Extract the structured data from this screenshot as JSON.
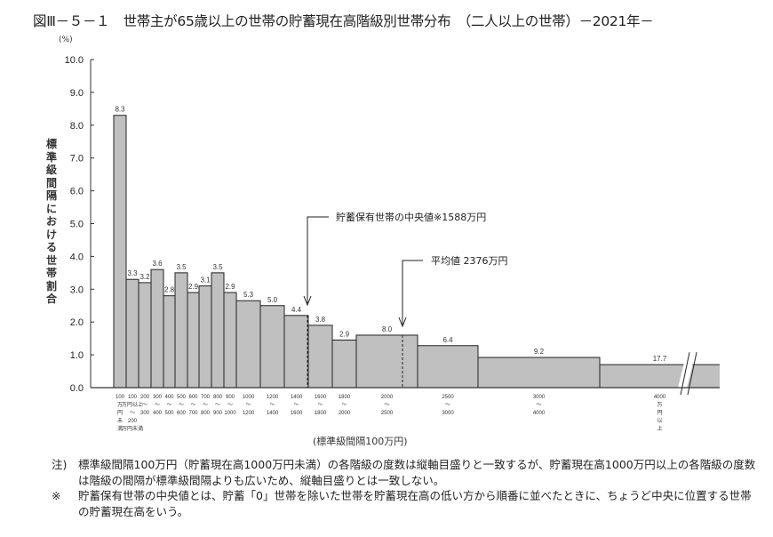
{
  "title": "図Ⅲ－５－１　世帯主が65歳以上の世帯の貯蓄現在高階級別世帯分布　（二人以上の世帯）－2021年－",
  "y_unit": "(%)",
  "y_axis_label": "標準級間隔における世帯割合",
  "x_axis_title": "(標準級間隔100万円)",
  "annotations": {
    "median": "貯蓄保有世帯の中央値※1588万円",
    "mean": "平均値 2376万円"
  },
  "notes": [
    {
      "marker": "注)",
      "text": "標準級間隔100万円（貯蓄現在高1000万円未満）の各階級の度数は縦軸目盛りと一致するが、貯蓄現在高1000万円以上の各階級の度数は階級の間隔が標準級間隔よりも広いため、縦軸目盛りとは一致しない。"
    },
    {
      "marker": "※",
      "text": "貯蓄保有世帯の中央値とは、貯蓄「0」世帯を除いた世帯を貯蓄現在高の低い方から順番に並べたときに、ちょうど中央に位置する世帯の貯蓄現在高をいう。"
    }
  ],
  "chart_data": {
    "type": "bar",
    "title": "世帯主が65歳以上の世帯の貯蓄現在高階級別世帯分布（二人以上の世帯）－2021年－",
    "xlabel": "(標準級間隔100万円)",
    "ylabel": "標準級間隔における世帯割合 (%)",
    "ylim": [
      0,
      10
    ],
    "yticks": [
      "0.0",
      "1.0",
      "2.0",
      "3.0",
      "4.0",
      "5.0",
      "6.0",
      "7.0",
      "8.0",
      "9.0",
      "10.0"
    ],
    "grid": false,
    "categories": [
      "100万円未満",
      "100万円以上～200",
      "200～300",
      "300～400",
      "400～500",
      "500～600",
      "600～700",
      "700～800",
      "800～900",
      "900～1000",
      "1000～1200",
      "1200～1400",
      "1400～1600",
      "1600～1800",
      "1800～2000",
      "2000～2500",
      "2500～3000",
      "3000～4000",
      "4000万円以上"
    ],
    "x_tick_labels": [
      [
        "100",
        "万",
        "円",
        "未",
        "満"
      ],
      [
        "100",
        "万円以上",
        "～",
        "200",
        "万円未満"
      ],
      [
        "200",
        "～",
        "300"
      ],
      [
        "300",
        "～",
        "400"
      ],
      [
        "400",
        "～",
        "500"
      ],
      [
        "500",
        "～",
        "600"
      ],
      [
        "600",
        "～",
        "700"
      ],
      [
        "700",
        "～",
        "800"
      ],
      [
        "800",
        "～",
        "900"
      ],
      [
        "900",
        "～",
        "1000"
      ],
      [
        "1000",
        "～",
        "1200"
      ],
      [
        "1200",
        "～",
        "1400"
      ],
      [
        "1400",
        "～",
        "1600"
      ],
      [
        "1600",
        "～",
        "1800"
      ],
      [
        "1800",
        "～",
        "2000"
      ],
      [
        "2000",
        "～",
        "2500"
      ],
      [
        "2500",
        "～",
        "3000"
      ],
      [
        "3000",
        "～",
        "4000"
      ],
      [
        "4000",
        "万",
        "円",
        "以",
        "上"
      ]
    ],
    "values": [
      8.3,
      3.3,
      3.2,
      3.6,
      2.8,
      3.5,
      2.9,
      3.1,
      3.5,
      2.9,
      5.3,
      5.0,
      4.4,
      3.8,
      2.9,
      8.0,
      6.4,
      9.2,
      17.7
    ],
    "bar_heights_on_axis": [
      8.3,
      3.3,
      3.2,
      3.6,
      2.8,
      3.5,
      2.9,
      3.1,
      3.5,
      2.9,
      2.65,
      2.5,
      2.2,
      1.9,
      1.45,
      1.6,
      1.28,
      0.92,
      0.7
    ],
    "median_man_yen": 1588,
    "mean_man_yen": 2376,
    "bar_color": "#c0c0c0"
  }
}
